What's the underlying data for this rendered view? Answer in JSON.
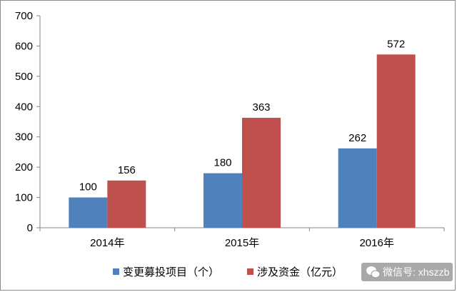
{
  "chart_data": {
    "type": "bar",
    "categories": [
      "2014年",
      "2015年",
      "2016年"
    ],
    "series": [
      {
        "name": "变更募投项目（个）",
        "values": [
          100,
          180,
          262
        ],
        "color": "#4f81bd"
      },
      {
        "name": "涉及资金（亿元）",
        "values": [
          156,
          363,
          572
        ],
        "color": "#c0504d"
      }
    ],
    "ylim": [
      0,
      700
    ],
    "yticks": [
      0,
      100,
      200,
      300,
      400,
      500,
      600,
      700
    ],
    "grid": false,
    "legend_position": "bottom"
  },
  "watermark": {
    "text": "微信号: xhszzb",
    "icon": "wechat-icon"
  }
}
